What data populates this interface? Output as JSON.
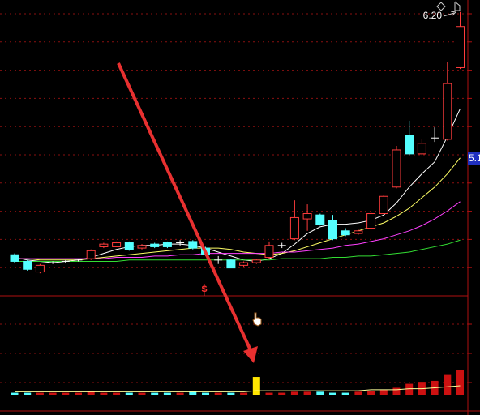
{
  "chart_data": {
    "type": "candlestick",
    "ylim": [
      4.06,
      6.29
    ],
    "up_color": "#ff3c3c",
    "down_color": "#54ffff",
    "doji_color": "#ffffff",
    "open": [
      4.37,
      4.32,
      4.24,
      4.31,
      4.32,
      4.33,
      4.34,
      4.43,
      4.43,
      4.46,
      4.42,
      4.45,
      4.46,
      4.46,
      4.47,
      4.42,
      4.33,
      4.33,
      4.29,
      4.31,
      4.35,
      4.44,
      4.49,
      4.64,
      4.67,
      4.63,
      4.55,
      4.53,
      4.57,
      4.68,
      4.88,
      5.27,
      5.13,
      5.25,
      5.24,
      5.78
    ],
    "close": [
      4.32,
      4.26,
      4.29,
      4.31,
      4.32,
      4.33,
      4.4,
      4.45,
      4.46,
      4.41,
      4.44,
      4.43,
      4.43,
      4.46,
      4.42,
      4.37,
      4.33,
      4.27,
      4.31,
      4.33,
      4.44,
      4.44,
      4.65,
      4.68,
      4.6,
      4.49,
      4.52,
      4.55,
      4.68,
      4.81,
      5.16,
      5.13,
      5.21,
      5.25,
      5.66,
      6.09
    ],
    "high": [
      4.38,
      4.33,
      4.3,
      4.32,
      4.33,
      4.34,
      4.41,
      4.46,
      4.47,
      4.47,
      4.45,
      4.46,
      4.47,
      4.48,
      4.48,
      4.43,
      4.36,
      4.34,
      4.32,
      4.34,
      4.47,
      4.46,
      4.78,
      4.75,
      4.68,
      4.67,
      4.57,
      4.56,
      4.69,
      4.82,
      5.19,
      5.38,
      5.24,
      5.33,
      5.82,
      6.2
    ],
    "low": [
      4.31,
      4.25,
      4.23,
      4.3,
      4.31,
      4.32,
      4.33,
      4.42,
      4.43,
      4.4,
      4.41,
      4.42,
      4.42,
      4.44,
      4.41,
      4.36,
      4.3,
      4.27,
      4.28,
      4.3,
      4.34,
      4.42,
      4.48,
      4.55,
      4.59,
      4.48,
      4.51,
      4.52,
      4.56,
      4.67,
      4.87,
      5.12,
      5.12,
      5.22,
      5.23,
      5.77
    ],
    "ma": [
      {
        "color": "#ffffff",
        "values": [
          4.35,
          4.33,
          4.32,
          4.31,
          4.32,
          4.33,
          4.35,
          4.38,
          4.41,
          4.43,
          4.44,
          4.44,
          4.45,
          4.45,
          4.44,
          4.42,
          4.39,
          4.36,
          4.33,
          4.32,
          4.34,
          4.38,
          4.45,
          4.53,
          4.58,
          4.6,
          4.6,
          4.61,
          4.63,
          4.67,
          4.76,
          4.88,
          4.98,
          5.07,
          5.26,
          5.47
        ]
      },
      {
        "color": "#ffff66",
        "values": [
          4.34,
          4.34,
          4.33,
          4.33,
          4.33,
          4.33,
          4.34,
          4.35,
          4.36,
          4.37,
          4.38,
          4.39,
          4.4,
          4.41,
          4.42,
          4.42,
          4.42,
          4.41,
          4.39,
          4.38,
          4.37,
          4.38,
          4.4,
          4.43,
          4.46,
          4.49,
          4.52,
          4.55,
          4.58,
          4.61,
          4.66,
          4.72,
          4.8,
          4.88,
          4.98,
          5.1
        ]
      },
      {
        "color": "#ff40ff",
        "values": [
          4.34,
          4.34,
          4.34,
          4.34,
          4.34,
          4.34,
          4.34,
          4.34,
          4.35,
          4.35,
          4.35,
          4.36,
          4.36,
          4.37,
          4.37,
          4.38,
          4.38,
          4.38,
          4.38,
          4.38,
          4.38,
          4.39,
          4.39,
          4.4,
          4.41,
          4.42,
          4.44,
          4.45,
          4.47,
          4.49,
          4.52,
          4.55,
          4.59,
          4.64,
          4.7,
          4.77
        ]
      },
      {
        "color": "#33dd33",
        "values": [
          4.32,
          4.32,
          4.32,
          4.32,
          4.32,
          4.32,
          4.32,
          4.32,
          4.32,
          4.33,
          4.33,
          4.33,
          4.33,
          4.33,
          4.33,
          4.33,
          4.33,
          4.33,
          4.33,
          4.33,
          4.33,
          4.34,
          4.34,
          4.34,
          4.34,
          4.35,
          4.35,
          4.36,
          4.36,
          4.37,
          4.38,
          4.39,
          4.41,
          4.43,
          4.45,
          4.48
        ]
      }
    ],
    "volume": {
      "ylim": [
        0,
        100
      ],
      "values": [
        2,
        2,
        2,
        2,
        2,
        2,
        3,
        2,
        2,
        2,
        2,
        2,
        2,
        2,
        3,
        2,
        2,
        2,
        2,
        18,
        2,
        2,
        3,
        3,
        3,
        2,
        2,
        3,
        4,
        5,
        7,
        11,
        13,
        14,
        20,
        25
      ],
      "colors": [
        "#54ffff",
        "#54ffff",
        "#cc1111",
        "#cc1111",
        "#cc1111",
        "#cc1111",
        "#cc1111",
        "#cc1111",
        "#cc1111",
        "#54ffff",
        "#cc1111",
        "#54ffff",
        "#54ffff",
        "#cc1111",
        "#54ffff",
        "#54ffff",
        "#cc1111",
        "#54ffff",
        "#cc1111",
        "#ffe600",
        "#cc1111",
        "#cc1111",
        "#cc1111",
        "#cc1111",
        "#54ffff",
        "#54ffff",
        "#54ffff",
        "#cc1111",
        "#cc1111",
        "#cc1111",
        "#cc1111",
        "#cc1111",
        "#cc1111",
        "#cc1111",
        "#cc1111",
        "#cc1111"
      ],
      "ma": {
        "color": "#ffff99",
        "values": [
          3,
          3,
          3,
          3,
          3,
          3,
          3,
          3,
          3,
          3,
          3,
          3,
          3,
          3,
          3,
          3,
          3,
          3,
          3,
          4,
          4,
          4,
          4,
          4,
          4,
          4,
          4,
          4,
          5,
          5,
          5,
          6,
          6,
          7,
          8,
          9
        ]
      }
    },
    "high_label": "6.20",
    "last_price_label": "5.1",
    "signal_label": "S"
  }
}
